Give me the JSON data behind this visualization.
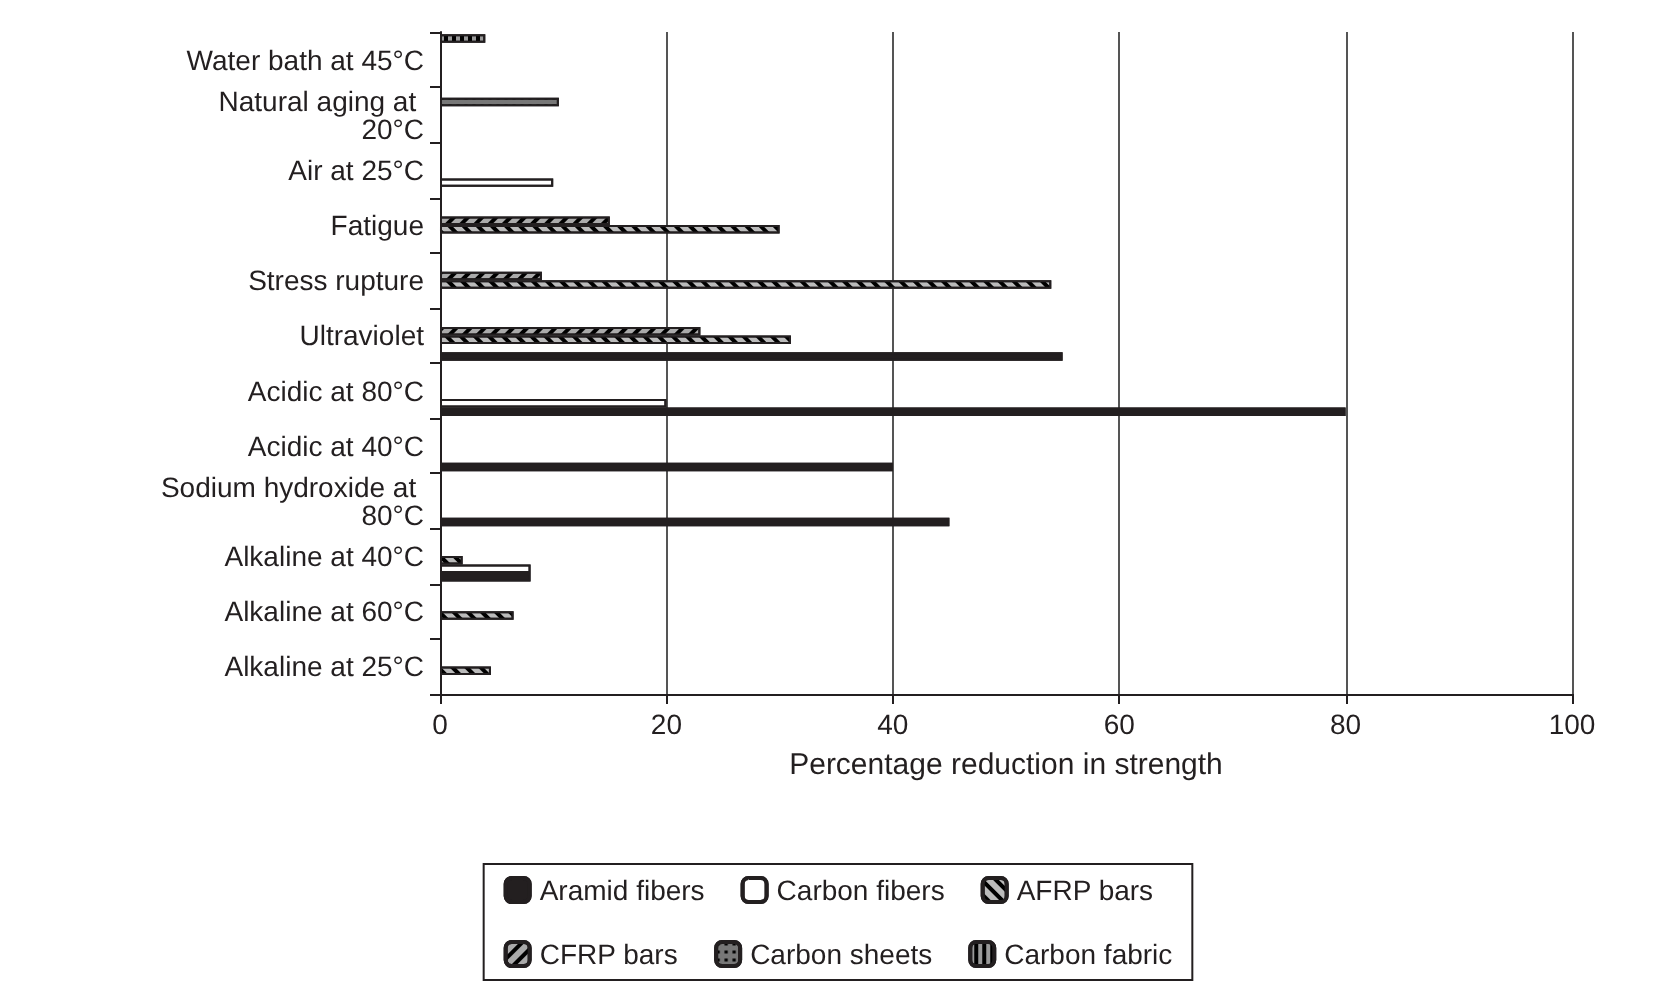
{
  "chart_data": {
    "type": "bar",
    "orientation": "horizontal",
    "xlabel": "Percentage reduction in strength",
    "categories": [
      "Water bath at 45°C",
      "Natural aging at 20°C",
      "Air at 25°C",
      "Fatigue",
      "Stress rupture",
      "Ultraviolet",
      "Acidic at 80°C",
      "Acidic at 40°C",
      "Sodium hydroxide at 80°C",
      "Alkaline at 40°C",
      "Alkaline at 60°C",
      "Alkaline at 25°C"
    ],
    "series": [
      {
        "name": "Carbon fabric",
        "color": "#999999",
        "values": [
          4,
          null,
          null,
          null,
          null,
          null,
          null,
          null,
          null,
          null,
          null,
          null
        ]
      },
      {
        "name": "Carbon sheets",
        "color": "#777777",
        "values": [
          null,
          10.5,
          null,
          null,
          null,
          null,
          null,
          null,
          null,
          null,
          null,
          null
        ]
      },
      {
        "name": "CFRP bars",
        "color": "#aaaaaa",
        "values": [
          null,
          null,
          null,
          15,
          9,
          23,
          null,
          null,
          null,
          null,
          null,
          null
        ]
      },
      {
        "name": "AFRP bars",
        "color": "#bbbbbb",
        "values": [
          null,
          null,
          null,
          30,
          54,
          31,
          null,
          null,
          null,
          2,
          6.5,
          4.5
        ]
      },
      {
        "name": "Carbon fibers",
        "color": "#ffffff",
        "values": [
          null,
          null,
          10,
          null,
          null,
          null,
          20,
          null,
          null,
          8,
          null,
          null
        ]
      },
      {
        "name": "Aramid fibers",
        "color": "#231f20",
        "values": [
          null,
          null,
          null,
          null,
          null,
          55,
          80,
          40,
          45,
          8,
          null,
          null
        ]
      }
    ],
    "xlim": [
      0,
      100
    ],
    "xticks": [
      0,
      20,
      40,
      60,
      80,
      100
    ],
    "grid": "x",
    "legend": "bottom"
  }
}
